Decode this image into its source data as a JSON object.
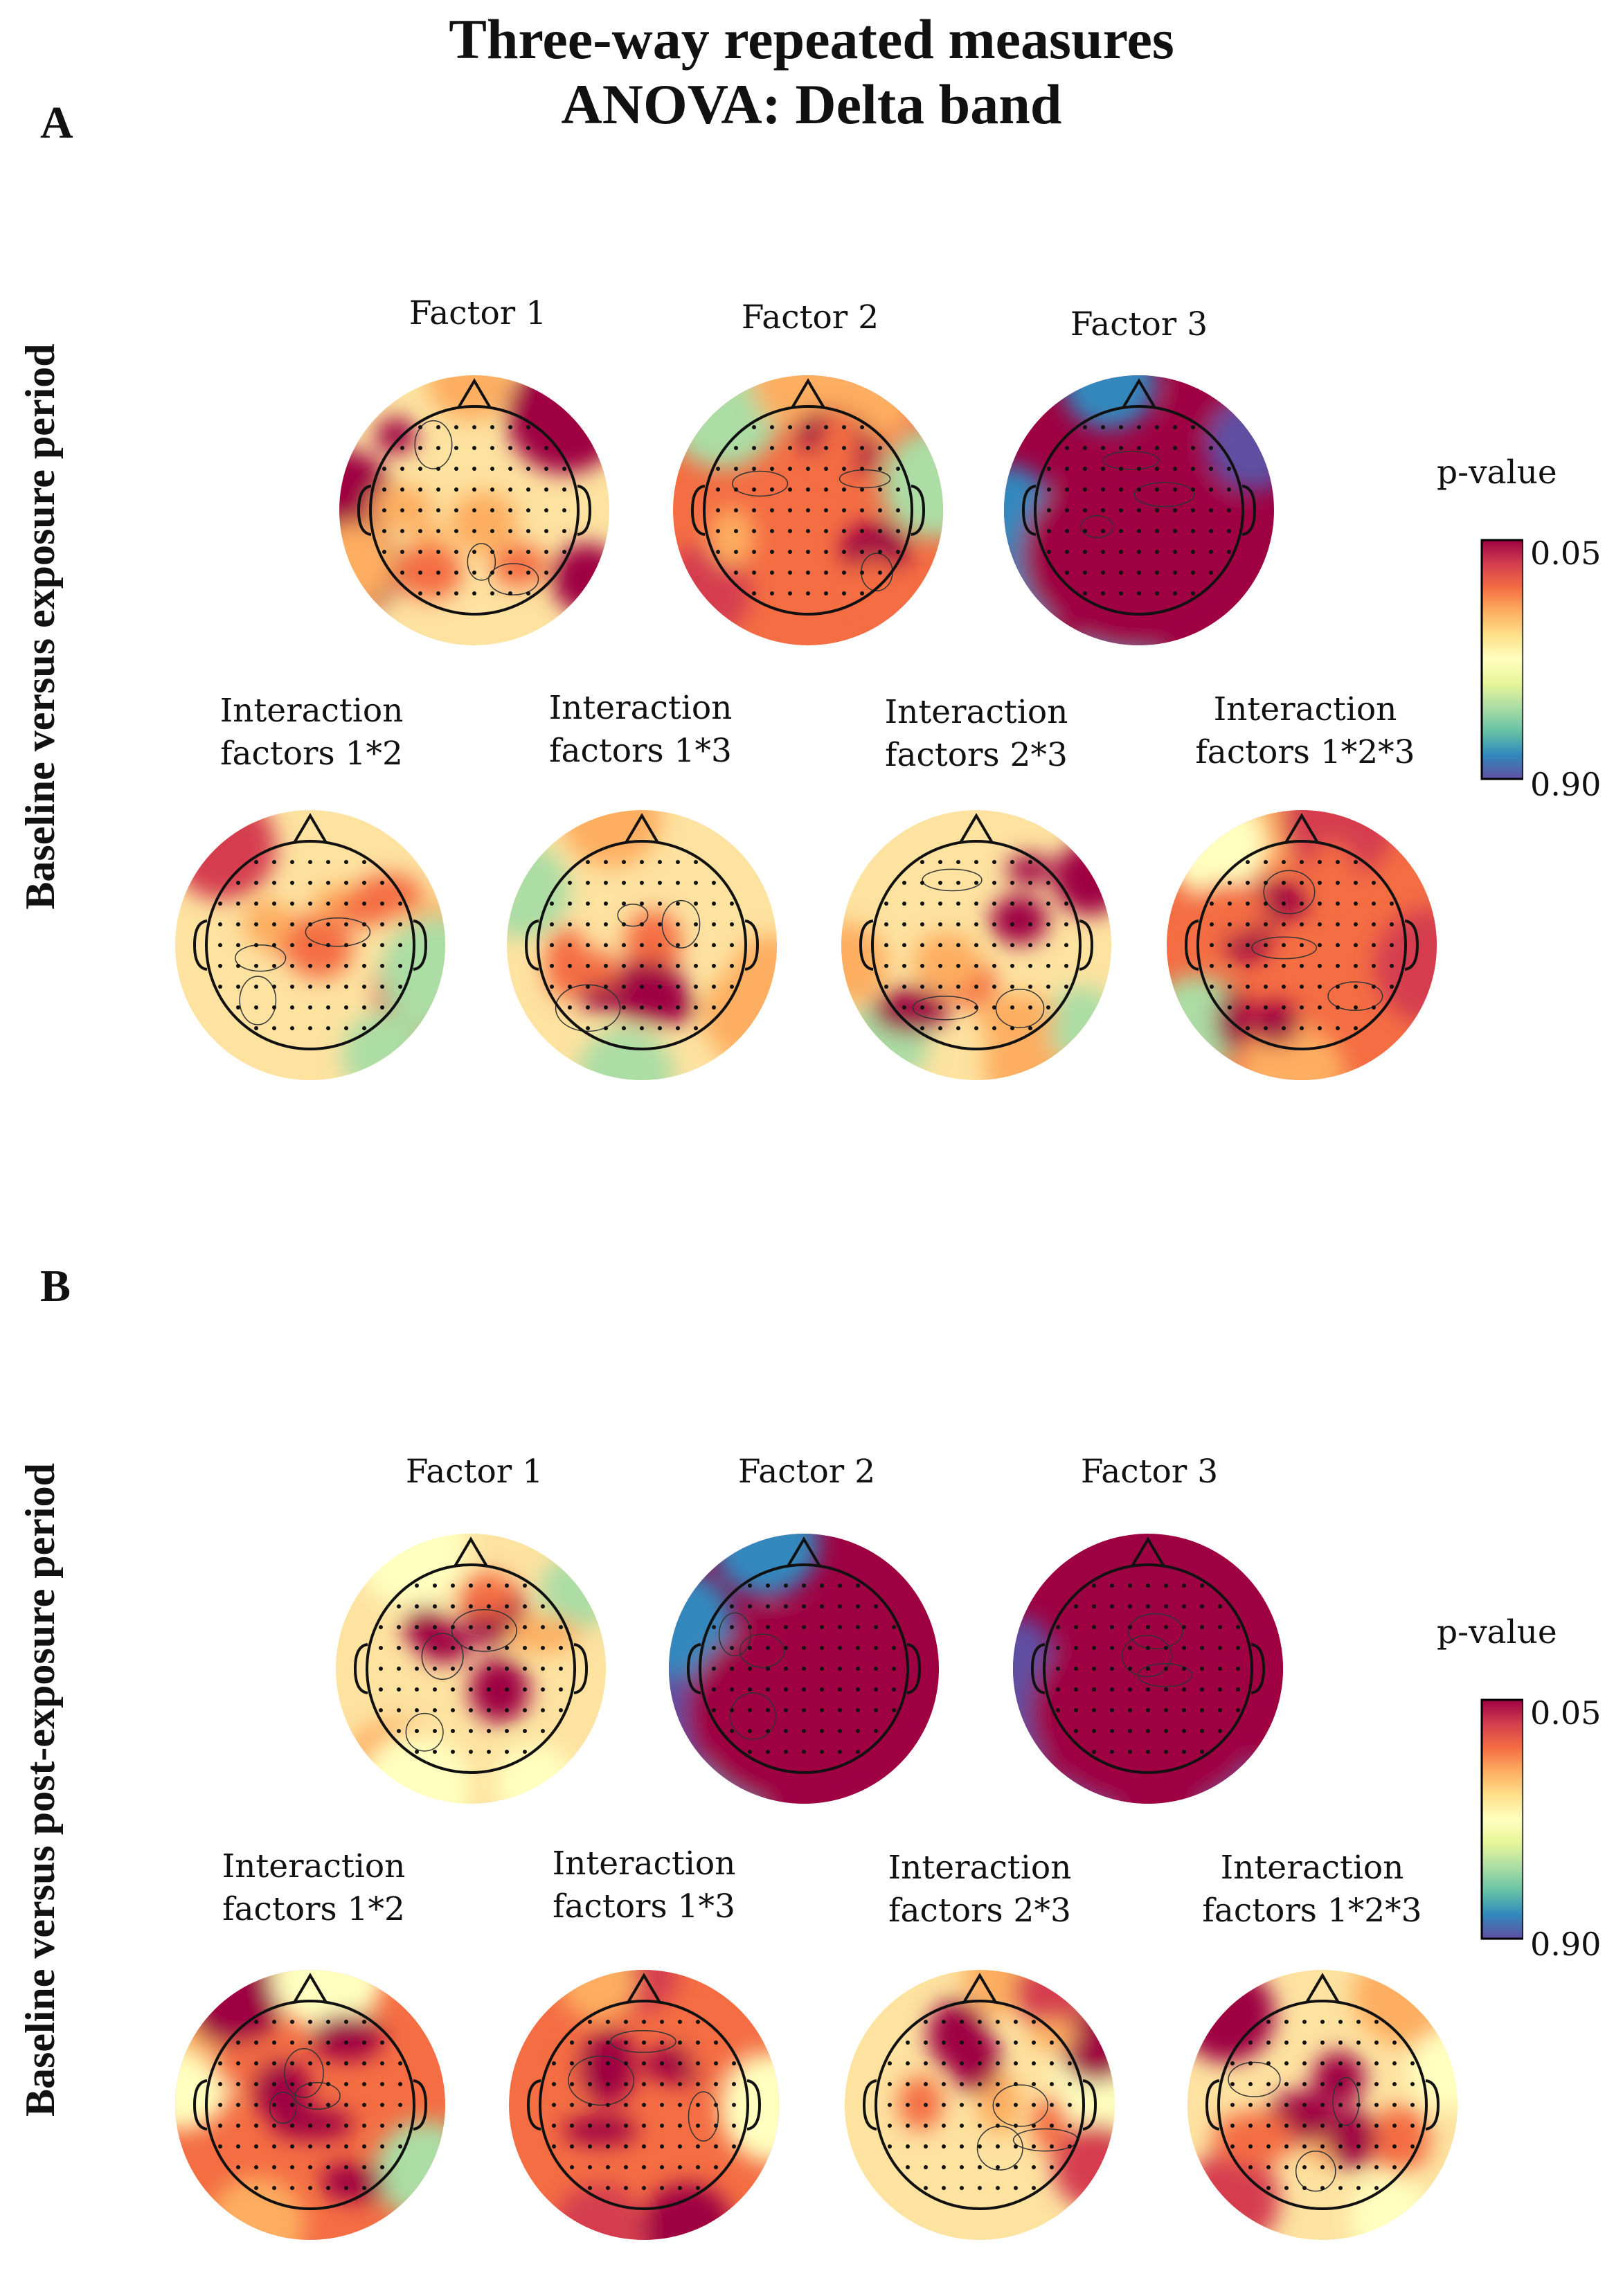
{
  "figure": {
    "title_line1": "Three-way repeated measures",
    "title_line2": "ANOVA: Delta band"
  },
  "colorbar": {
    "title": "p-value",
    "tick_top": "0.05",
    "tick_bottom": "0.90",
    "colors": [
      "#9e0142",
      "#d53e4f",
      "#f46d43",
      "#fdae61",
      "#fee08b",
      "#ffffbf",
      "#e6f598",
      "#abdda4",
      "#66c2a5",
      "#3288bd",
      "#5e4fa2"
    ]
  },
  "panels": [
    {
      "letter": "A",
      "row_label": "Baseline versus exposure period",
      "maps": [
        {
          "line1": "Factor 1",
          "line2": "",
          "sig": 0.35,
          "pattern": 1
        },
        {
          "line1": "Factor 2",
          "line2": "",
          "sig": 0.6,
          "pattern": 2
        },
        {
          "line1": "Factor 3",
          "line2": "",
          "sig": 0.95,
          "pattern": 3
        },
        {
          "line1": "Interaction",
          "line2": "factors 1*2",
          "sig": 0.2,
          "pattern": 4
        },
        {
          "line1": "Interaction",
          "line2": "factors 1*3",
          "sig": 0.4,
          "pattern": 5
        },
        {
          "line1": "Interaction",
          "line2": "factors 2*3",
          "sig": 0.4,
          "pattern": 6
        },
        {
          "line1": "Interaction",
          "line2": "factors 1*2*3",
          "sig": 0.6,
          "pattern": 7
        }
      ]
    },
    {
      "letter": "B",
      "row_label": "Baseline versus post-exposure period",
      "maps": [
        {
          "line1": "Factor 1",
          "line2": "",
          "sig": 0.35,
          "pattern": 8
        },
        {
          "line1": "Factor 2",
          "line2": "",
          "sig": 0.97,
          "pattern": 9
        },
        {
          "line1": "Factor 3",
          "line2": "",
          "sig": 0.95,
          "pattern": 10
        },
        {
          "line1": "Interaction",
          "line2": "factors 1*2",
          "sig": 0.55,
          "pattern": 11
        },
        {
          "line1": "Interaction",
          "line2": "factors 1*3",
          "sig": 0.6,
          "pattern": 12
        },
        {
          "line1": "Interaction",
          "line2": "factors 2*3",
          "sig": 0.45,
          "pattern": 13
        },
        {
          "line1": "Interaction",
          "line2": "factors 1*2*3",
          "sig": 0.4,
          "pattern": 14
        }
      ]
    }
  ]
}
